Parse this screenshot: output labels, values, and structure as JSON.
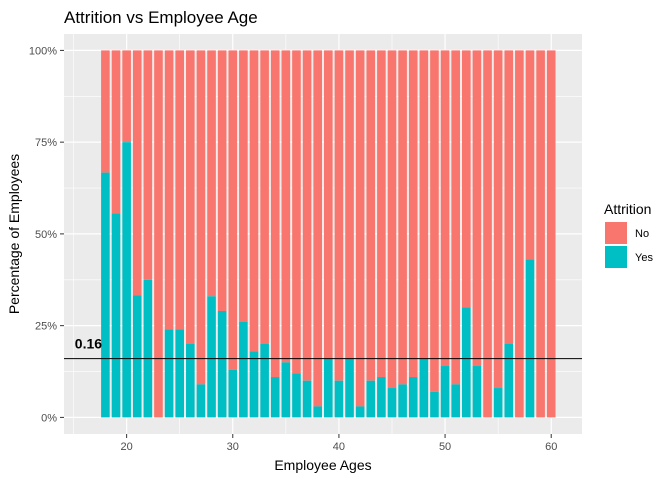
{
  "chart_data": {
    "type": "bar",
    "stacked": "fill",
    "title": "Attrition vs Employee Age",
    "xlabel": "Employee Ages",
    "ylabel": "Percentage of Employees",
    "xlim": [
      14.1,
      62.9
    ],
    "ylim": [
      0,
      1
    ],
    "x_ticks": [
      20,
      30,
      40,
      50,
      60
    ],
    "y_ticks": [
      0,
      0.25,
      0.5,
      0.75,
      1
    ],
    "y_tick_labels": [
      "0%",
      "25%",
      "50%",
      "75%",
      "100%"
    ],
    "grid": true,
    "legend_title": "Attrition",
    "legend_position": "right",
    "series": [
      {
        "name": "No",
        "color": "#F8766D"
      },
      {
        "name": "Yes",
        "color": "#00BFC4"
      }
    ],
    "x": [
      18,
      19,
      20,
      21,
      22,
      23,
      24,
      25,
      26,
      27,
      28,
      29,
      30,
      31,
      32,
      33,
      34,
      35,
      36,
      37,
      38,
      39,
      40,
      41,
      42,
      43,
      44,
      45,
      46,
      47,
      48,
      49,
      50,
      51,
      52,
      53,
      54,
      55,
      56,
      57,
      58,
      59,
      60
    ],
    "yes_fraction": [
      0.667,
      0.556,
      0.75,
      0.333,
      0.375,
      0,
      0.24,
      0.24,
      0.2,
      0.09,
      0.33,
      0.29,
      0.13,
      0.26,
      0.18,
      0.2,
      0.11,
      0.15,
      0.12,
      0.1,
      0.03,
      0.16,
      0.1,
      0.16,
      0.03,
      0.1,
      0.11,
      0.08,
      0.09,
      0.11,
      0.16,
      0.07,
      0.14,
      0.09,
      0.3,
      0.14,
      0,
      0.08,
      0.2,
      0,
      0.43,
      0,
      0
    ],
    "hline": {
      "y": 0.16,
      "label": "0.16"
    }
  }
}
